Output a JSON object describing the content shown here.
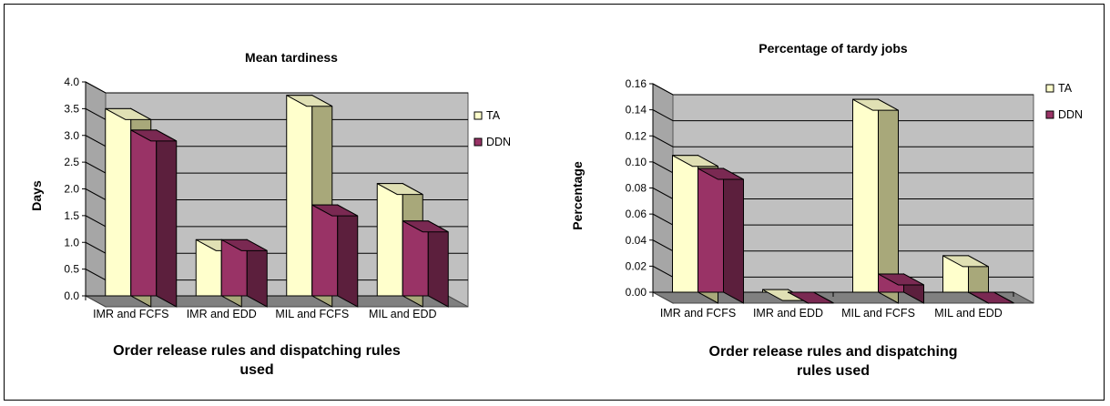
{
  "colors": {
    "ta_front": "#ffffcc",
    "ta_side": "#a8a87a",
    "ta_top": "#e0e0b4",
    "ddn_front": "#993366",
    "ddn_side": "#5c1f3d",
    "ddn_top": "#7a2952",
    "wall": "#c0c0c0",
    "floor": "#808080",
    "gridline": "#000000"
  },
  "chart_data": [
    {
      "type": "bar",
      "title": "Mean tardiness",
      "xlabel": "Order release rules and dispatching rules used",
      "ylabel": "Days",
      "categories": [
        "IMR and FCFS",
        "IMR and EDD",
        "MIL and FCFS",
        "MIL and EDD"
      ],
      "series": [
        {
          "name": "TA",
          "values": [
            3.5,
            1.05,
            3.75,
            2.1
          ]
        },
        {
          "name": "DDN",
          "values": [
            3.1,
            1.05,
            1.7,
            1.4
          ]
        }
      ],
      "ylim": [
        0,
        4
      ],
      "yticks": [
        "0.0",
        "0.5",
        "1.0",
        "1.5",
        "2.0",
        "2.5",
        "3.0",
        "3.5",
        "4.0"
      ],
      "grid": true,
      "legend": "right"
    },
    {
      "type": "bar",
      "title": "Percentage of tardy jobs",
      "xlabel": "Order release rules and dispatching rules used",
      "ylabel": "Percentage",
      "categories": [
        "IMR and FCFS",
        "IMR and EDD",
        "MIL and FCFS",
        "MIL and EDD"
      ],
      "series": [
        {
          "name": "TA",
          "values": [
            0.105,
            0.002,
            0.148,
            0.028
          ]
        },
        {
          "name": "DDN",
          "values": [
            0.095,
            0.0,
            0.014,
            0.0
          ]
        }
      ],
      "ylim": [
        0,
        0.16
      ],
      "yticks": [
        "0.00",
        "0.02",
        "0.04",
        "0.06",
        "0.08",
        "0.10",
        "0.12",
        "0.14",
        "0.16"
      ],
      "grid": true,
      "legend": "right"
    }
  ]
}
